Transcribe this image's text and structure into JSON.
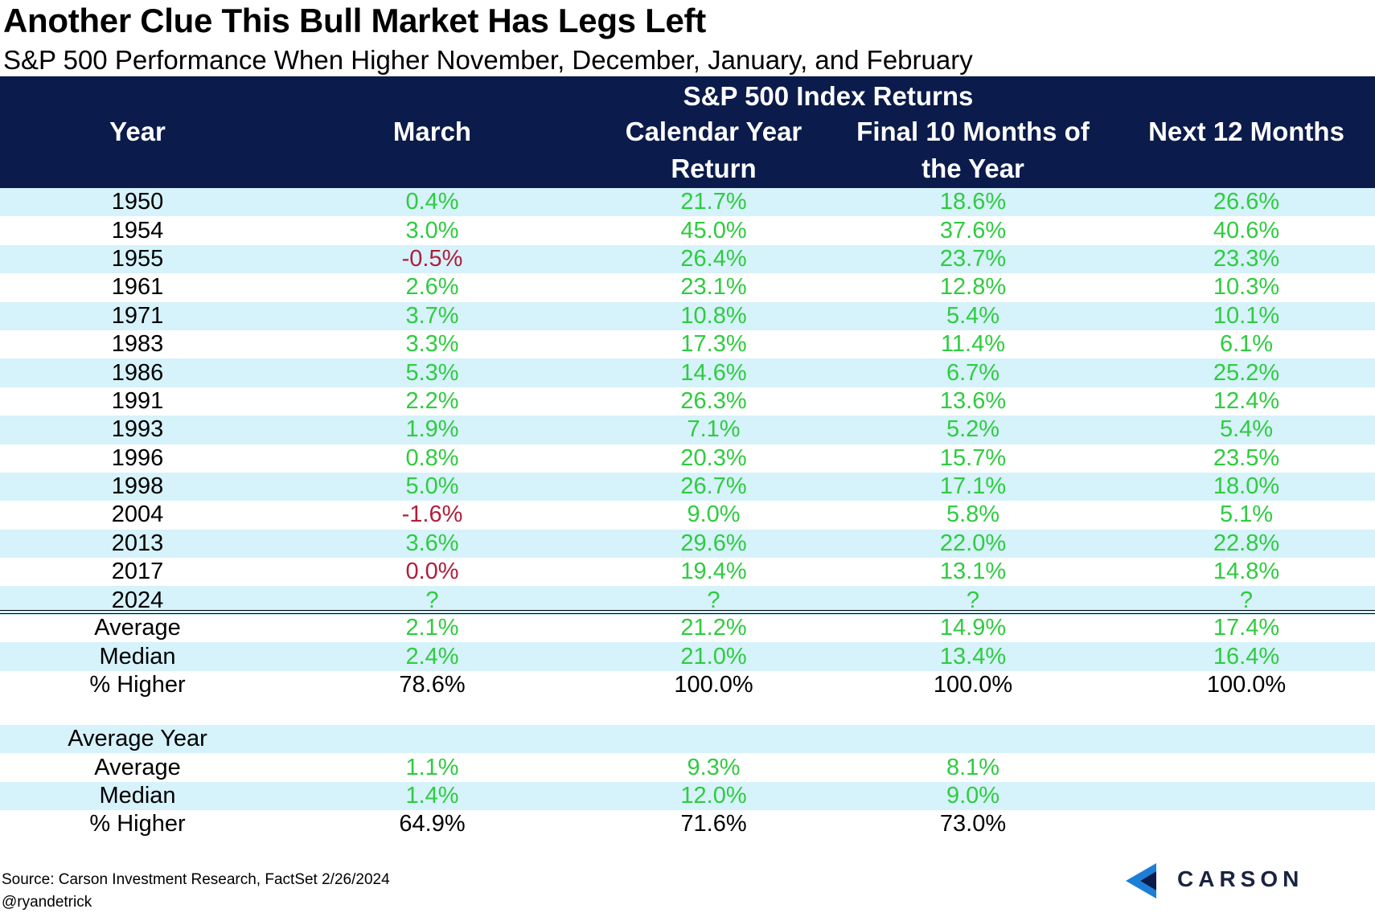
{
  "title": "Another Clue This Bull Market Has Legs Left",
  "subtitle": "S&P 500 Performance When Higher November, December, January, and February",
  "header": {
    "group_label": "S&P 500 Index Returns",
    "year": "Year",
    "march": "March",
    "calendar_line1": "Calendar Year",
    "calendar_line2": "Return",
    "final_line1": "Final 10 Months of",
    "final_line2": "the Year",
    "next12": "Next 12 Months"
  },
  "rows": [
    {
      "year": "1950",
      "march": "0.4%",
      "calendar": "21.7%",
      "final": "18.6%",
      "next12": "26.6%"
    },
    {
      "year": "1954",
      "march": "3.0%",
      "calendar": "45.0%",
      "final": "37.6%",
      "next12": "40.6%"
    },
    {
      "year": "1955",
      "march": "-0.5%",
      "calendar": "26.4%",
      "final": "23.7%",
      "next12": "23.3%"
    },
    {
      "year": "1961",
      "march": "2.6%",
      "calendar": "23.1%",
      "final": "12.8%",
      "next12": "10.3%"
    },
    {
      "year": "1971",
      "march": "3.7%",
      "calendar": "10.8%",
      "final": "5.4%",
      "next12": "10.1%"
    },
    {
      "year": "1983",
      "march": "3.3%",
      "calendar": "17.3%",
      "final": "11.4%",
      "next12": "6.1%"
    },
    {
      "year": "1986",
      "march": "5.3%",
      "calendar": "14.6%",
      "final": "6.7%",
      "next12": "25.2%"
    },
    {
      "year": "1991",
      "march": "2.2%",
      "calendar": "26.3%",
      "final": "13.6%",
      "next12": "12.4%"
    },
    {
      "year": "1993",
      "march": "1.9%",
      "calendar": "7.1%",
      "final": "5.2%",
      "next12": "5.4%"
    },
    {
      "year": "1996",
      "march": "0.8%",
      "calendar": "20.3%",
      "final": "15.7%",
      "next12": "23.5%"
    },
    {
      "year": "1998",
      "march": "5.0%",
      "calendar": "26.7%",
      "final": "17.1%",
      "next12": "18.0%"
    },
    {
      "year": "2004",
      "march": "-1.6%",
      "calendar": "9.0%",
      "final": "5.8%",
      "next12": "5.1%"
    },
    {
      "year": "2013",
      "march": "3.6%",
      "calendar": "29.6%",
      "final": "22.0%",
      "next12": "22.8%"
    },
    {
      "year": "2017",
      "march": "0.0%",
      "calendar": "19.4%",
      "final": "13.1%",
      "next12": "14.8%"
    },
    {
      "year": "2024",
      "march": "?",
      "calendar": "?",
      "final": "?",
      "next12": "?"
    }
  ],
  "summary": [
    {
      "label": "Average",
      "march": "2.1%",
      "calendar": "21.2%",
      "final": "14.9%",
      "next12": "17.4%"
    },
    {
      "label": "Median",
      "march": "2.4%",
      "calendar": "21.0%",
      "final": "13.4%",
      "next12": "16.4%"
    },
    {
      "label": "% Higher",
      "march": "78.6%",
      "calendar": "100.0%",
      "final": "100.0%",
      "next12": "100.0%"
    }
  ],
  "average_year": {
    "label": "Average Year",
    "rows": [
      {
        "label": "Average",
        "march": "1.1%",
        "calendar": "9.3%",
        "final": "8.1%"
      },
      {
        "label": "Median",
        "march": "1.4%",
        "calendar": "12.0%",
        "final": "9.0%"
      },
      {
        "label": "% Higher",
        "march": "64.9%",
        "calendar": "71.6%",
        "final": "73.0%"
      }
    ]
  },
  "footer": {
    "source": "Source: Carson Investment Research, FactSet 2/26/2024",
    "handle": "@ryandetrick",
    "logo_text": "CARSON"
  },
  "colors": {
    "header_bg": "#0b1b4b",
    "stripe": "#d6f2fa",
    "positive": "#2ecc40",
    "negative": "#b01e3a"
  }
}
